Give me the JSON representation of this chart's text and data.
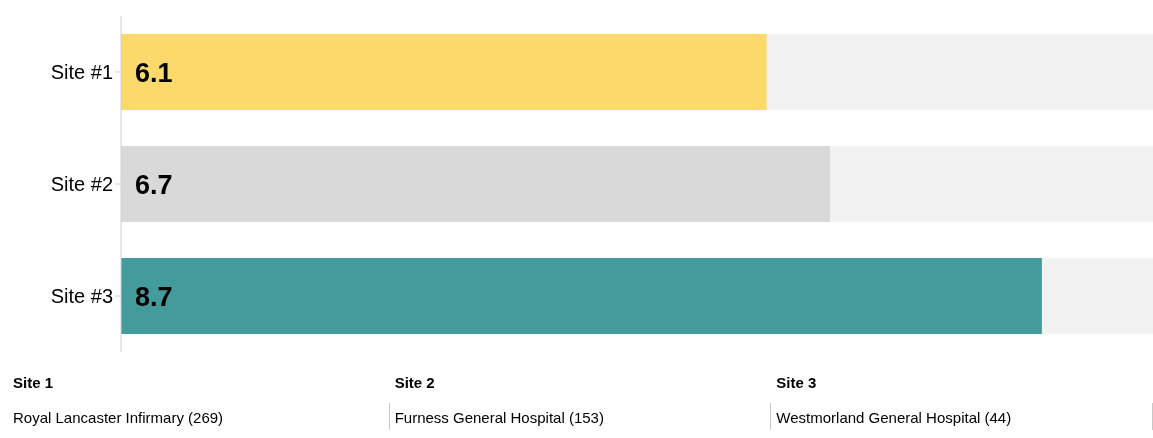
{
  "chart_data": {
    "type": "bar",
    "orientation": "horizontal",
    "categories": [
      "Site #1",
      "Site #2",
      "Site #3"
    ],
    "values": [
      6.1,
      6.7,
      8.7
    ],
    "colors": [
      "#fdd86a",
      "#d9d9d9",
      "#439b9b"
    ],
    "xlim": [
      0,
      9.75
    ],
    "data_labels": true,
    "annotations": [
      "Site 1",
      "Site 2",
      "Site 3",
      "Royal Lancaster Infirmary (269)",
      "Furness General Hospital (153)",
      "Westmorland General Hospital (44)"
    ]
  }
}
